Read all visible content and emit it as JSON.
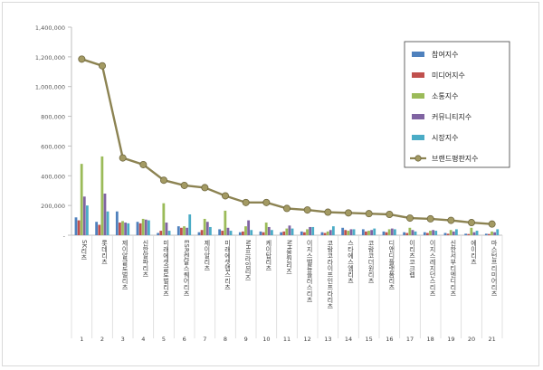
{
  "chart_data": {
    "type": "bar",
    "categories": [
      "SK리츠",
      "롯데리츠",
      "제이알글로벌리츠",
      "신한알파리츠",
      "미래에셋글로벌리츠",
      "ESR켄달스퀘어리츠",
      "제이알리츠",
      "미래에셋맵스리츠",
      "NH프라임리츠",
      "케이탑리츠",
      "NH올원리츠",
      "이지스밸류플러스리츠",
      "코람코라이프인프라리츠",
      "스타에스엠리츠",
      "코람코더원리츠",
      "디앤디플랫폼리츠",
      "이리츠코크렙",
      "이지스레지던스리츠",
      "신한서부티엔디리츠",
      "에이리츠",
      "마스턴프리미어리츠"
    ],
    "ranks": [
      "1",
      "2",
      "3",
      "4",
      "5",
      "6",
      "7",
      "8",
      "9",
      "10",
      "11",
      "12",
      "13",
      "14",
      "15",
      "16",
      "17",
      "18",
      "19",
      "20",
      "21"
    ],
    "y_ticks": [
      "-",
      "200,000",
      "400,000",
      "600,000",
      "800,000",
      "1,000,000",
      "1,200,000",
      "1,400,000"
    ],
    "ylim": [
      0,
      1400000
    ],
    "legend_position": "top-right",
    "grid": false,
    "series": [
      {
        "name": "참여지수",
        "kind": "bar",
        "color": "#4f81bd",
        "values": [
          120000,
          90000,
          160000,
          90000,
          15000,
          60000,
          20000,
          40000,
          20000,
          25000,
          20000,
          25000,
          20000,
          50000,
          40000,
          25000,
          20000,
          20000,
          15000,
          10000,
          10000
        ]
      },
      {
        "name": "미디어지수",
        "kind": "bar",
        "color": "#c0504d",
        "values": [
          100000,
          70000,
          85000,
          80000,
          30000,
          50000,
          35000,
          30000,
          25000,
          20000,
          25000,
          20000,
          15000,
          35000,
          25000,
          20000,
          15000,
          15000,
          10000,
          8000,
          8000
        ]
      },
      {
        "name": "소통지수",
        "kind": "bar",
        "color": "#9bbb59",
        "values": [
          480000,
          530000,
          95000,
          110000,
          215000,
          60000,
          110000,
          165000,
          60000,
          85000,
          45000,
          40000,
          25000,
          30000,
          30000,
          40000,
          50000,
          30000,
          35000,
          50000,
          25000
        ]
      },
      {
        "name": "커뮤니티지수",
        "kind": "bar",
        "color": "#8064a2",
        "values": [
          260000,
          280000,
          85000,
          105000,
          85000,
          50000,
          90000,
          50000,
          100000,
          55000,
          65000,
          55000,
          35000,
          40000,
          35000,
          45000,
          35000,
          35000,
          25000,
          20000,
          20000
        ]
      },
      {
        "name": "시장지수",
        "kind": "bar",
        "color": "#4bacc6",
        "values": [
          200000,
          160000,
          80000,
          100000,
          30000,
          140000,
          55000,
          30000,
          35000,
          35000,
          45000,
          55000,
          60000,
          40000,
          45000,
          40000,
          25000,
          30000,
          40000,
          30000,
          40000
        ]
      },
      {
        "name": "브랜드평판지수",
        "kind": "line",
        "color": "#8c8352",
        "values": [
          1185000,
          1140000,
          520000,
          475000,
          370000,
          335000,
          320000,
          265000,
          220000,
          220000,
          180000,
          170000,
          155000,
          150000,
          145000,
          140000,
          115000,
          110000,
          100000,
          85000,
          75000
        ]
      }
    ]
  }
}
